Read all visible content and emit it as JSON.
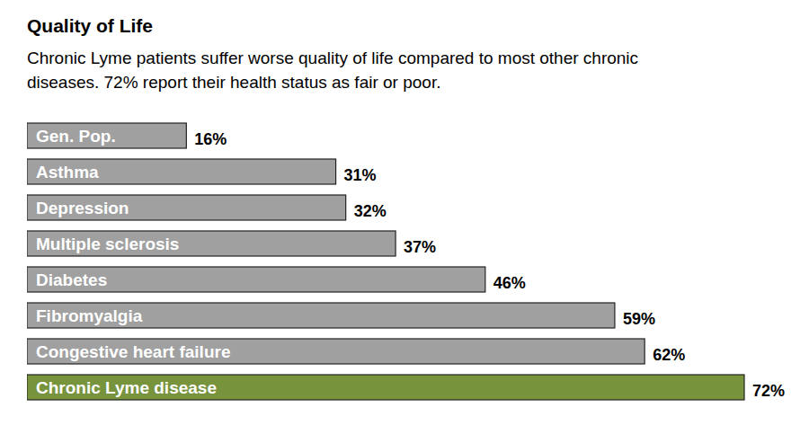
{
  "chart_data": {
    "type": "bar",
    "orientation": "horizontal",
    "title": "Quality of Life",
    "subtitle": "Chronic Lyme patients suffer worse quality of life compared to most other chronic diseases. 72% report their health status as fair or poor.",
    "categories": [
      "Gen. Pop.",
      "Asthma",
      "Depression",
      "Multiple sclerosis",
      "Diabetes",
      "Fibromyalgia",
      "Congestive heart failure",
      "Chronic Lyme disease"
    ],
    "values": [
      16,
      31,
      32,
      37,
      46,
      59,
      62,
      72
    ],
    "value_labels": [
      "16%",
      "31%",
      "32%",
      "37%",
      "46%",
      "59%",
      "62%",
      "72%"
    ],
    "colors": [
      "#a0a0a0",
      "#a0a0a0",
      "#a0a0a0",
      "#a0a0a0",
      "#a0a0a0",
      "#a0a0a0",
      "#a0a0a0",
      "#77933c"
    ],
    "xlim": [
      0,
      72
    ],
    "data_labels": true,
    "tick_labels": false,
    "grid": false
  }
}
